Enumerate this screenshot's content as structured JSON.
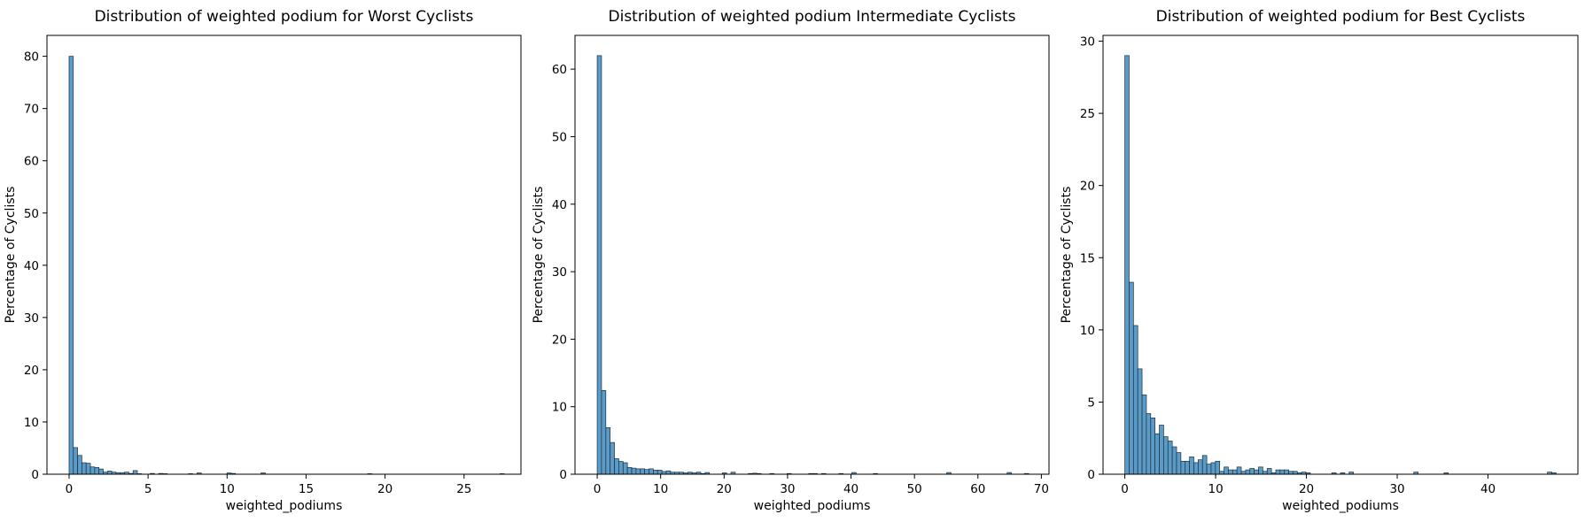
{
  "chart_data": [
    {
      "type": "bar",
      "title": "Distribution of weighted podium for Worst Cyclists",
      "xlabel": "weighted_podiums",
      "ylabel": "Percentage of Cyclists",
      "xlim": [
        -1.4,
        28.6
      ],
      "ylim": [
        0,
        84
      ],
      "xticks": [
        0,
        5,
        10,
        15,
        20,
        25
      ],
      "yticks": [
        0,
        10,
        20,
        30,
        40,
        50,
        60,
        70,
        80
      ],
      "bin_width": 0.27,
      "bins": [
        [
          0,
          80
        ],
        [
          0.27,
          5.1
        ],
        [
          0.54,
          3.6
        ],
        [
          0.81,
          2.2
        ],
        [
          1.08,
          2.1
        ],
        [
          1.35,
          1.4
        ],
        [
          1.62,
          1.3
        ],
        [
          1.89,
          1.0
        ],
        [
          2.16,
          0.4
        ],
        [
          2.43,
          0.6
        ],
        [
          2.7,
          0.4
        ],
        [
          2.97,
          0.3
        ],
        [
          3.24,
          0.3
        ],
        [
          3.51,
          0.4
        ],
        [
          3.78,
          0.15
        ],
        [
          4.05,
          0.7
        ],
        [
          4.32,
          0.1
        ],
        [
          5.13,
          0.15
        ],
        [
          5.67,
          0.15
        ],
        [
          5.94,
          0.1
        ],
        [
          7.56,
          0.1
        ],
        [
          8.1,
          0.25
        ],
        [
          9.99,
          0.25
        ],
        [
          10.26,
          0.15
        ],
        [
          12.15,
          0.25
        ],
        [
          18.9,
          0.1
        ],
        [
          27.27,
          0.1
        ]
      ]
    },
    {
      "type": "bar",
      "title": "Distribution of weighted podium Intermediate Cyclists",
      "xlabel": "weighted_podiums",
      "ylabel": "Percentage of Cyclists",
      "xlim": [
        -3.5,
        71.2
      ],
      "ylim": [
        0,
        65
      ],
      "xticks": [
        0,
        10,
        20,
        30,
        40,
        50,
        60,
        70
      ],
      "yticks": [
        0,
        10,
        20,
        30,
        40,
        50,
        60
      ],
      "bin_width": 0.68,
      "bins": [
        [
          0,
          62
        ],
        [
          0.68,
          12.4
        ],
        [
          1.36,
          6.9
        ],
        [
          2.04,
          4.7
        ],
        [
          2.72,
          2.3
        ],
        [
          3.4,
          1.9
        ],
        [
          4.08,
          1.7
        ],
        [
          4.76,
          1.0
        ],
        [
          5.44,
          0.9
        ],
        [
          6.12,
          0.8
        ],
        [
          6.8,
          0.8
        ],
        [
          7.48,
          0.7
        ],
        [
          8.16,
          0.8
        ],
        [
          8.84,
          0.6
        ],
        [
          9.52,
          0.6
        ],
        [
          10.2,
          0.4
        ],
        [
          10.88,
          0.5
        ],
        [
          11.56,
          0.3
        ],
        [
          12.24,
          0.3
        ],
        [
          12.92,
          0.3
        ],
        [
          13.6,
          0.2
        ],
        [
          14.28,
          0.3
        ],
        [
          14.96,
          0.2
        ],
        [
          15.64,
          0.3
        ],
        [
          16.32,
          0.1
        ],
        [
          17.0,
          0.25
        ],
        [
          19.72,
          0.2
        ],
        [
          21.08,
          0.3
        ],
        [
          23.8,
          0.1
        ],
        [
          24.48,
          0.15
        ],
        [
          25.16,
          0.1
        ],
        [
          27.2,
          0.1
        ],
        [
          29.92,
          0.1
        ],
        [
          33.32,
          0.1
        ],
        [
          34.0,
          0.1
        ],
        [
          35.36,
          0.1
        ],
        [
          38.08,
          0.1
        ],
        [
          40.12,
          0.25
        ],
        [
          43.52,
          0.1
        ],
        [
          55.08,
          0.25
        ],
        [
          64.6,
          0.25
        ],
        [
          67.32,
          0.1
        ]
      ]
    },
    {
      "type": "bar",
      "title": "Distribution of weighted podium  for Best Cyclists",
      "xlabel": "weighted_podiums",
      "ylabel": "Percentage of Cyclists",
      "xlim": [
        -2.4,
        49.9
      ],
      "ylim": [
        0,
        30.4
      ],
      "xticks": [
        0,
        10,
        20,
        30,
        40
      ],
      "yticks": [
        0,
        5,
        10,
        15,
        20,
        25,
        30
      ],
      "bin_width": 0.475,
      "bins": [
        [
          0,
          29
        ],
        [
          0.475,
          13.3
        ],
        [
          0.95,
          10.3
        ],
        [
          1.425,
          7.3
        ],
        [
          1.9,
          5.5
        ],
        [
          2.375,
          4.2
        ],
        [
          2.85,
          3.9
        ],
        [
          3.325,
          2.8
        ],
        [
          3.8,
          3.4
        ],
        [
          4.275,
          2.6
        ],
        [
          4.75,
          2.3
        ],
        [
          5.225,
          1.9
        ],
        [
          5.7,
          1.5
        ],
        [
          6.175,
          0.9
        ],
        [
          6.65,
          0.9
        ],
        [
          7.125,
          1.2
        ],
        [
          7.6,
          0.8
        ],
        [
          8.075,
          1.0
        ],
        [
          8.55,
          1.3
        ],
        [
          9.025,
          0.7
        ],
        [
          9.5,
          0.8
        ],
        [
          9.975,
          0.9
        ],
        [
          10.45,
          0.2
        ],
        [
          10.925,
          0.5
        ],
        [
          11.4,
          0.3
        ],
        [
          11.875,
          0.3
        ],
        [
          12.35,
          0.5
        ],
        [
          12.825,
          0.2
        ],
        [
          13.3,
          0.3
        ],
        [
          13.775,
          0.4
        ],
        [
          14.25,
          0.3
        ],
        [
          14.725,
          0.5
        ],
        [
          15.2,
          0.2
        ],
        [
          15.675,
          0.4
        ],
        [
          16.15,
          0.1
        ],
        [
          16.625,
          0.3
        ],
        [
          17.1,
          0.3
        ],
        [
          17.575,
          0.3
        ],
        [
          18.05,
          0.2
        ],
        [
          18.525,
          0.2
        ],
        [
          19.0,
          0.1
        ],
        [
          19.475,
          0.15
        ],
        [
          19.95,
          0.1
        ],
        [
          22.8,
          0.1
        ],
        [
          23.75,
          0.1
        ],
        [
          24.7,
          0.15
        ],
        [
          31.825,
          0.15
        ],
        [
          35.15,
          0.1
        ],
        [
          46.55,
          0.15
        ],
        [
          47.025,
          0.1
        ]
      ]
    }
  ]
}
